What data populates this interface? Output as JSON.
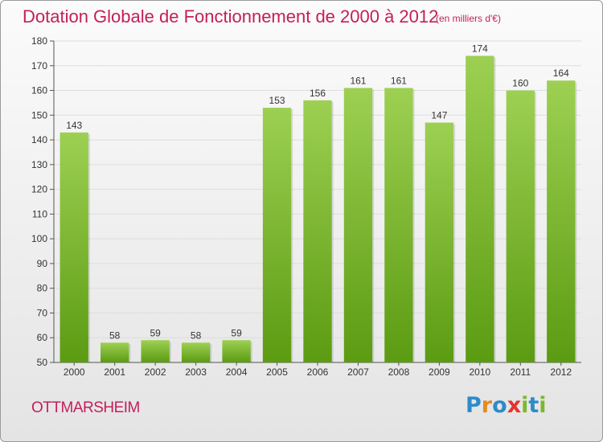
{
  "header": {
    "title": "Dotation Globale de Fonctionnement de 2000 à 2012",
    "subtitle": "(en milliers d'€)"
  },
  "footer": {
    "commune": "OTTMARSHEIM",
    "logo": {
      "letters": [
        "P",
        "r",
        "o",
        "x",
        "i",
        "t",
        "i"
      ],
      "colors": [
        "#2d8bc9",
        "#e88a1a",
        "#2d8bc9",
        "#e3342f",
        "#7cb82f",
        "#2d8bc9",
        "#7cb82f"
      ]
    }
  },
  "chart_data": {
    "type": "bar",
    "categories": [
      "2000",
      "2001",
      "2002",
      "2003",
      "2004",
      "2005",
      "2006",
      "2007",
      "2008",
      "2009",
      "2010",
      "2011",
      "2012"
    ],
    "values": [
      143,
      58,
      59,
      58,
      59,
      153,
      156,
      161,
      161,
      147,
      174,
      160,
      164
    ],
    "ylim": [
      50,
      180
    ],
    "yticks": [
      50,
      60,
      70,
      80,
      90,
      100,
      110,
      120,
      130,
      140,
      150,
      160,
      170,
      180
    ],
    "xlabel": "",
    "ylabel": "",
    "grid": true,
    "legend": "none",
    "colors": {
      "bar_top": "#9dd052",
      "bar_bottom": "#5b9b12",
      "grid": "#dddddd"
    }
  }
}
